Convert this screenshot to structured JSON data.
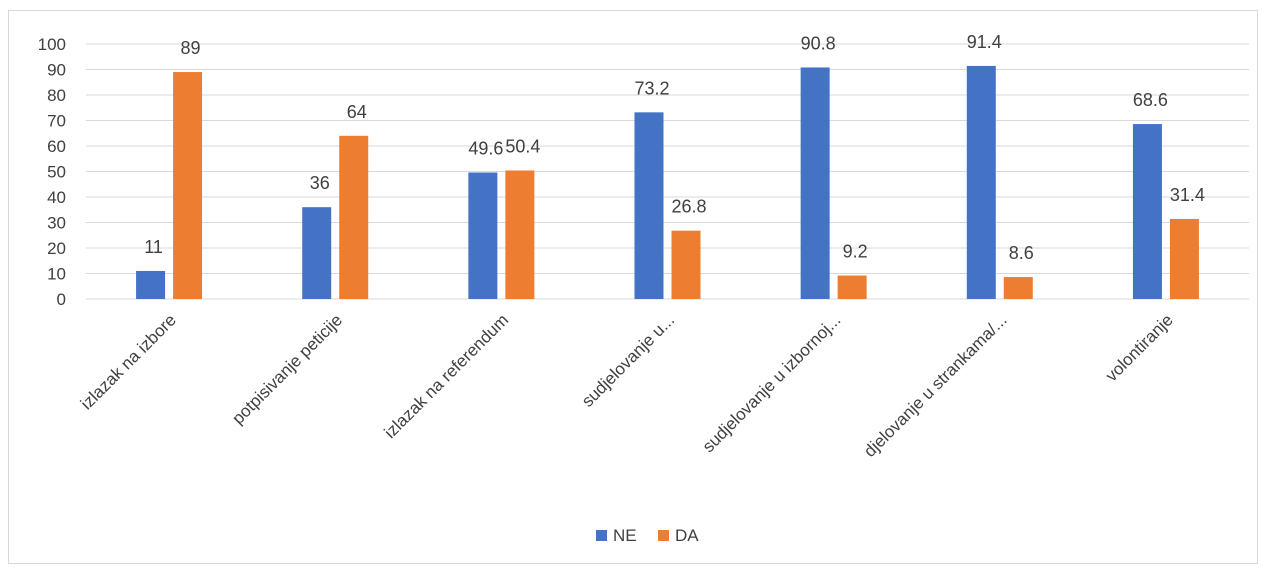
{
  "chart_data": {
    "type": "bar",
    "categories": [
      "izlazak na izbore",
      "potpisivanje peticije",
      "izlazak na referendum",
      "sudjelovanje u...",
      "sudjelovanje u izbornoj...",
      "djelovanje u strankama/...",
      "volontiranje"
    ],
    "series": [
      {
        "name": "NE",
        "color": "#4472c4",
        "values": [
          11,
          36,
          49.6,
          73.2,
          90.8,
          91.4,
          68.6
        ]
      },
      {
        "name": "DA",
        "color": "#ed7d31",
        "values": [
          89,
          64,
          50.4,
          26.8,
          9.2,
          8.6,
          31.4
        ]
      }
    ],
    "ylim": [
      0,
      100
    ],
    "yticks": [
      0,
      10,
      20,
      30,
      40,
      50,
      60,
      70,
      80,
      90,
      100
    ],
    "grid": true,
    "legend": "bottom",
    "data_labels": true
  }
}
